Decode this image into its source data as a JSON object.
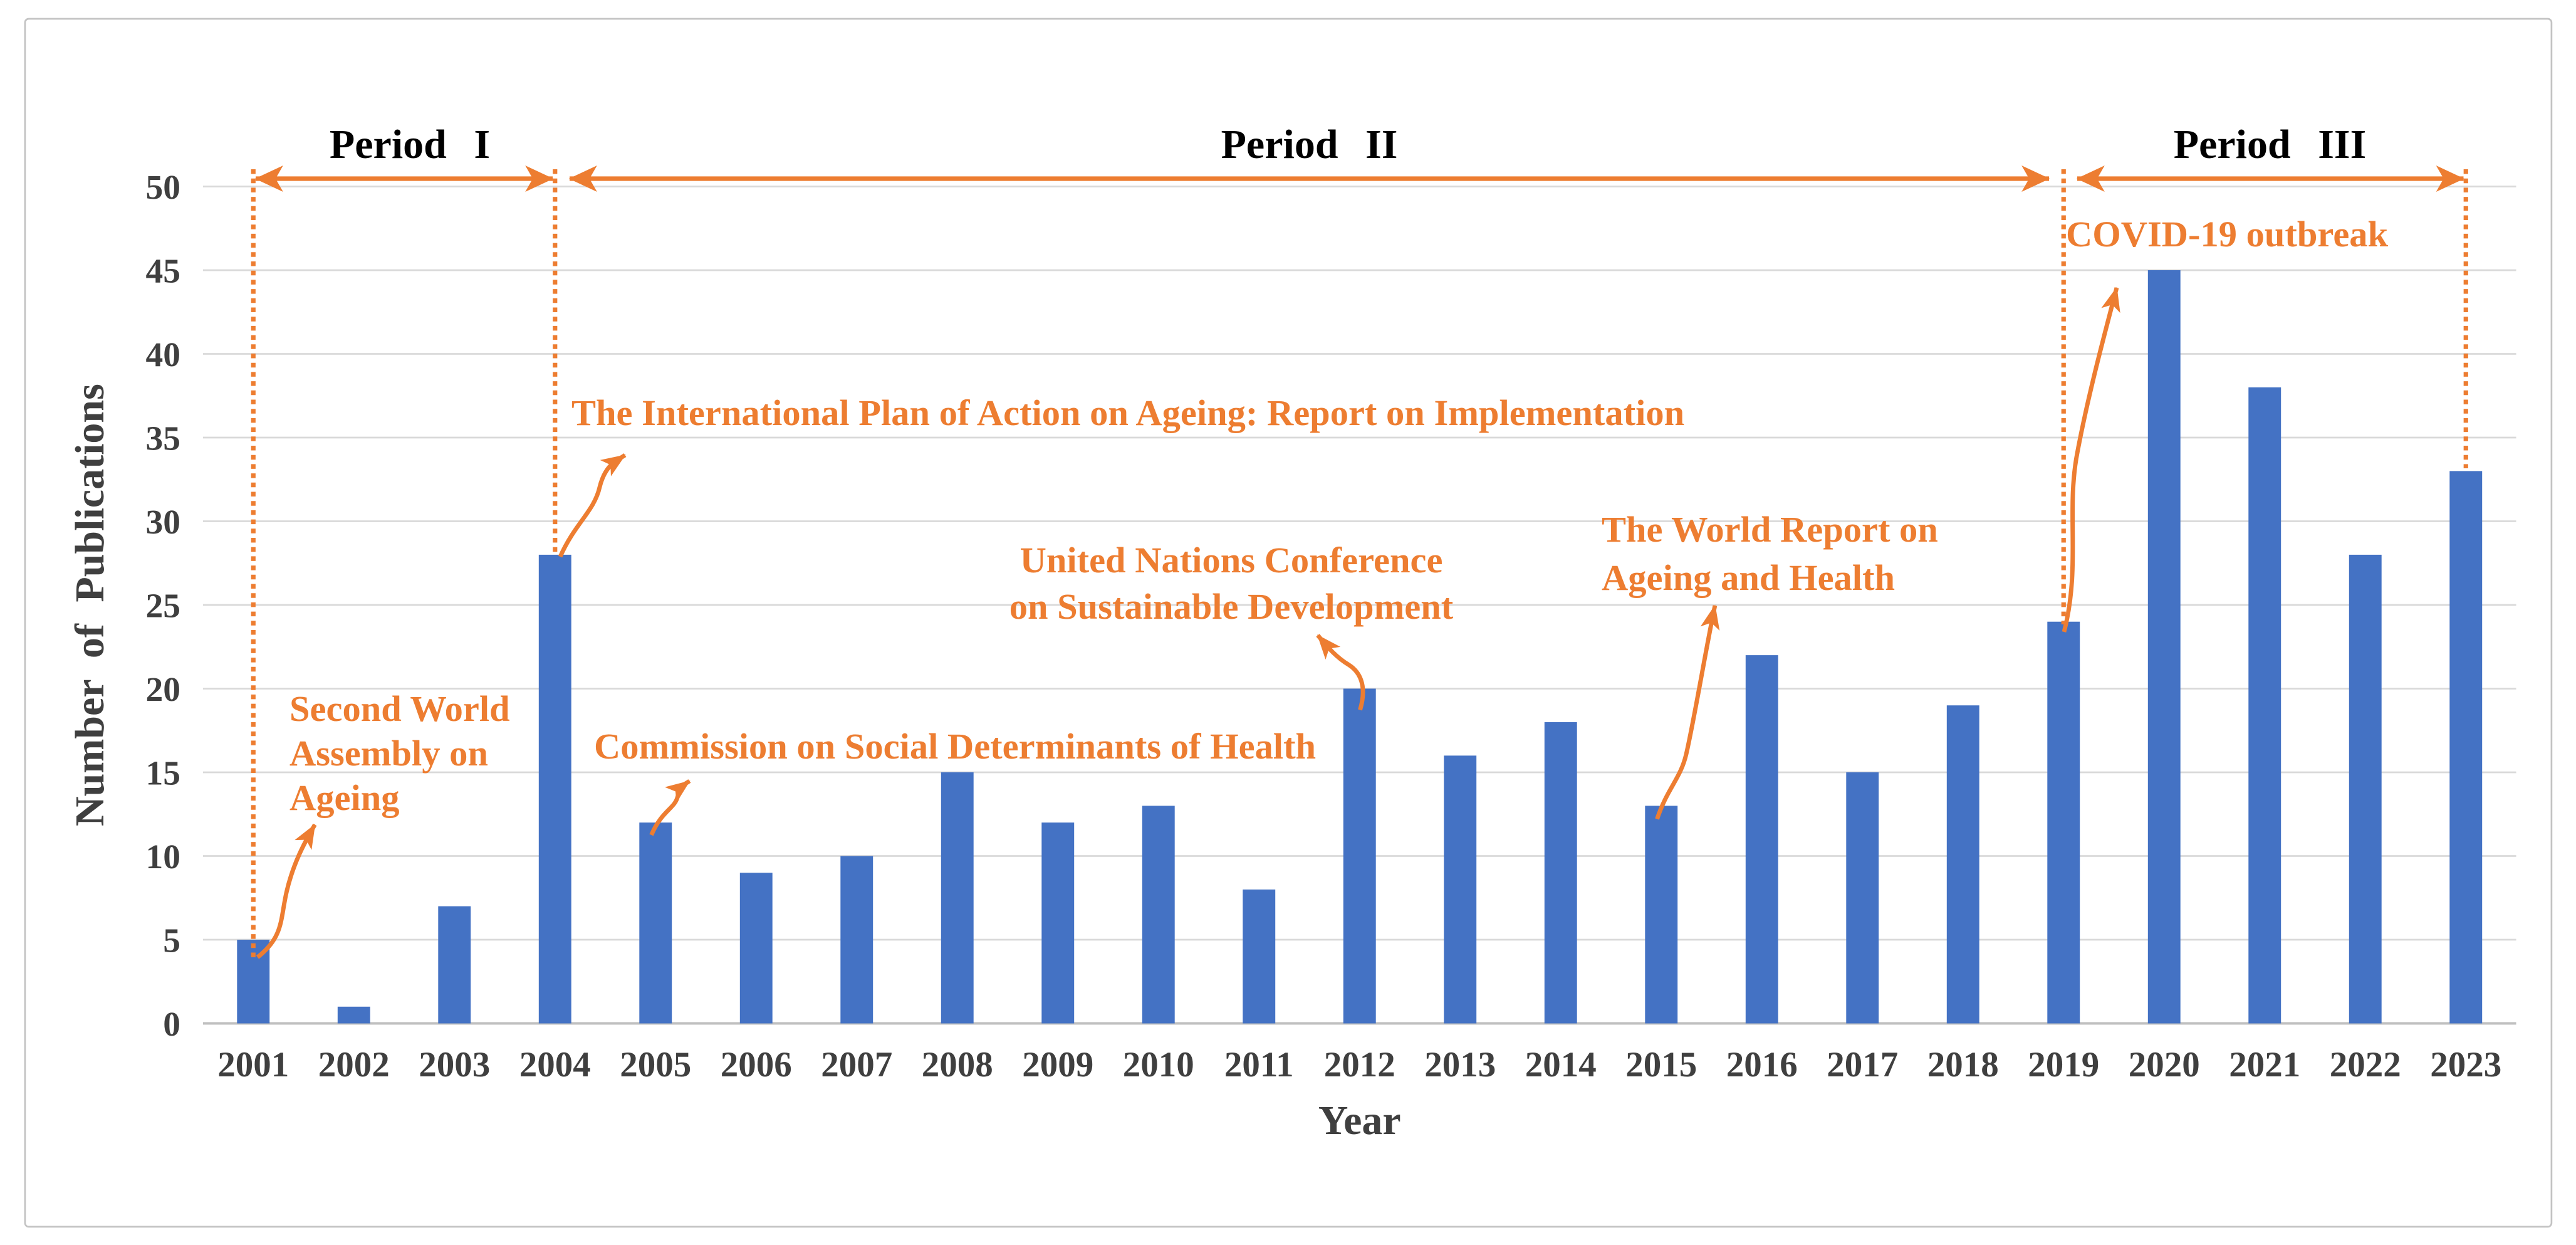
{
  "chart_data": {
    "type": "bar",
    "title": "",
    "xlabel": "Year",
    "ylabel": "Number of Publications",
    "categories": [
      "2001",
      "2002",
      "2003",
      "2004",
      "2005",
      "2006",
      "2007",
      "2008",
      "2009",
      "2010",
      "2011",
      "2012",
      "2013",
      "2014",
      "2015",
      "2016",
      "2017",
      "2018",
      "2019",
      "2020",
      "2021",
      "2022",
      "2023"
    ],
    "values": [
      5,
      1,
      7,
      28,
      12,
      9,
      10,
      15,
      12,
      13,
      8,
      20,
      16,
      18,
      13,
      22,
      15,
      19,
      24,
      45,
      38,
      28,
      33
    ],
    "ylim": [
      0,
      50
    ],
    "ytick_step": 5,
    "grid": true,
    "legend_position": "none",
    "bar_color": "#4472C4"
  },
  "periods": [
    {
      "label": "Period I",
      "from_year": "2001",
      "to_year": "2004"
    },
    {
      "label": "Period II",
      "from_year": "2004",
      "to_year": "2019"
    },
    {
      "label": "Period III",
      "from_year": "2019",
      "to_year": "2023"
    }
  ],
  "annotations": [
    {
      "id": "second-world-assembly",
      "target_year": "2001",
      "lines": [
        "Second World",
        "Assembly on",
        "Ageing"
      ]
    },
    {
      "id": "international-plan",
      "target_year": "2004",
      "lines": [
        "The International Plan of Action on Ageing: Report on Implementation"
      ]
    },
    {
      "id": "commission-social-determinants",
      "target_year": "2005",
      "lines": [
        "Commission on Social Determinants of Health"
      ]
    },
    {
      "id": "un-conference",
      "target_year": "2012",
      "lines": [
        "United Nations Conference",
        "on Sustainable Development"
      ]
    },
    {
      "id": "world-report",
      "target_year": "2015",
      "lines": [
        "The World Report on",
        "Ageing and Health"
      ]
    },
    {
      "id": "covid-outbreak",
      "target_year": "2019",
      "lines": [
        "COVID-19 outbreak"
      ]
    }
  ],
  "colors": {
    "bar": "#4472C4",
    "accent_orange": "#ED7D31",
    "axis_text": "#3F3F3F",
    "period_text": "#000000",
    "gridline": "#D9D9D9",
    "frame_border": "#C3C3C3"
  }
}
